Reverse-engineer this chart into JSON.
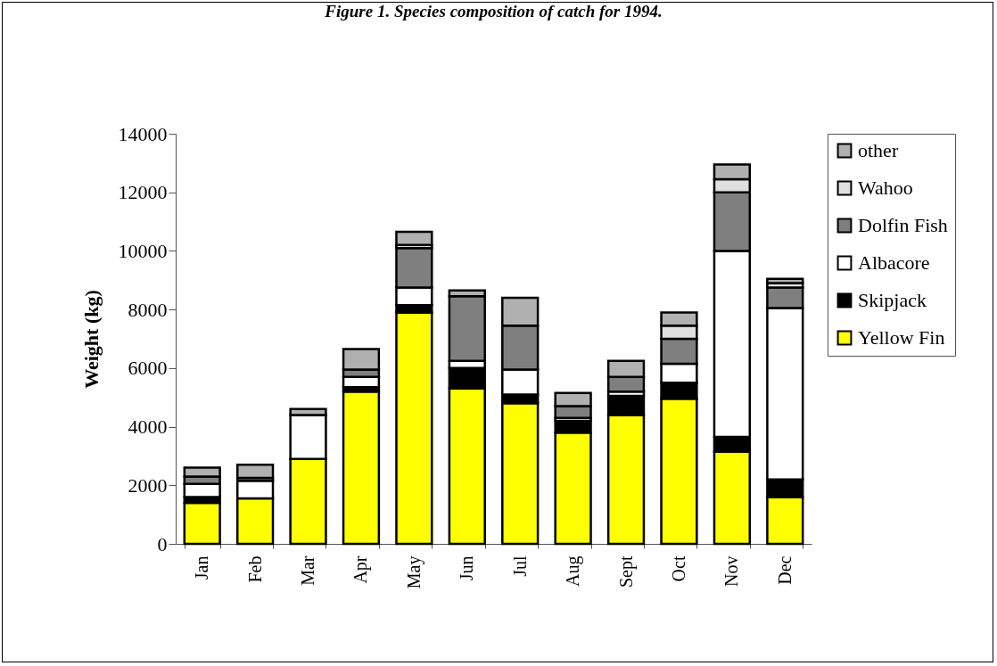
{
  "chart_data": {
    "type": "bar",
    "title": "Figure 1. Species composition of catch for 1994.",
    "ylabel": "Weight (kg)",
    "stacked": true,
    "legend": "right",
    "grid": false,
    "categories": [
      "Jan",
      "Feb",
      "Mar",
      "Apr",
      "May",
      "Jun",
      "Jul",
      "Aug",
      "Sept",
      "Oct",
      "Nov",
      "Dec"
    ],
    "ylim": [
      0,
      14000
    ],
    "yticks": [
      0,
      2000,
      4000,
      6000,
      8000,
      10000,
      12000,
      14000
    ],
    "series": [
      {
        "name": "Yellow Fin",
        "color": "#ffff00",
        "values": [
          1400,
          1550,
          2900,
          5200,
          7900,
          5300,
          4800,
          3800,
          4400,
          4950,
          3150,
          1600
        ]
      },
      {
        "name": "Skipjack",
        "color": "#000000",
        "values": [
          200,
          null,
          null,
          150,
          250,
          700,
          300,
          400,
          650,
          550,
          500,
          600
        ]
      },
      {
        "name": "Albacore",
        "color": "#ffffff",
        "values": [
          450,
          600,
          1500,
          350,
          600,
          250,
          850,
          100,
          150,
          650,
          6350,
          5850
        ]
      },
      {
        "name": "Dolfin Fish",
        "color": "#7f7f7f",
        "values": [
          250,
          100,
          null,
          250,
          1350,
          2200,
          1500,
          400,
          500,
          850,
          2000,
          700
        ]
      },
      {
        "name": "Wahoo",
        "color": "#e0e0e0",
        "values": [
          null,
          null,
          null,
          null,
          100,
          null,
          null,
          null,
          null,
          450,
          450,
          150
        ]
      },
      {
        "name": "other",
        "color": "#b0b0b0",
        "values": [
          300,
          450,
          200,
          700,
          450,
          200,
          950,
          450,
          550,
          450,
          500,
          150
        ]
      }
    ]
  }
}
